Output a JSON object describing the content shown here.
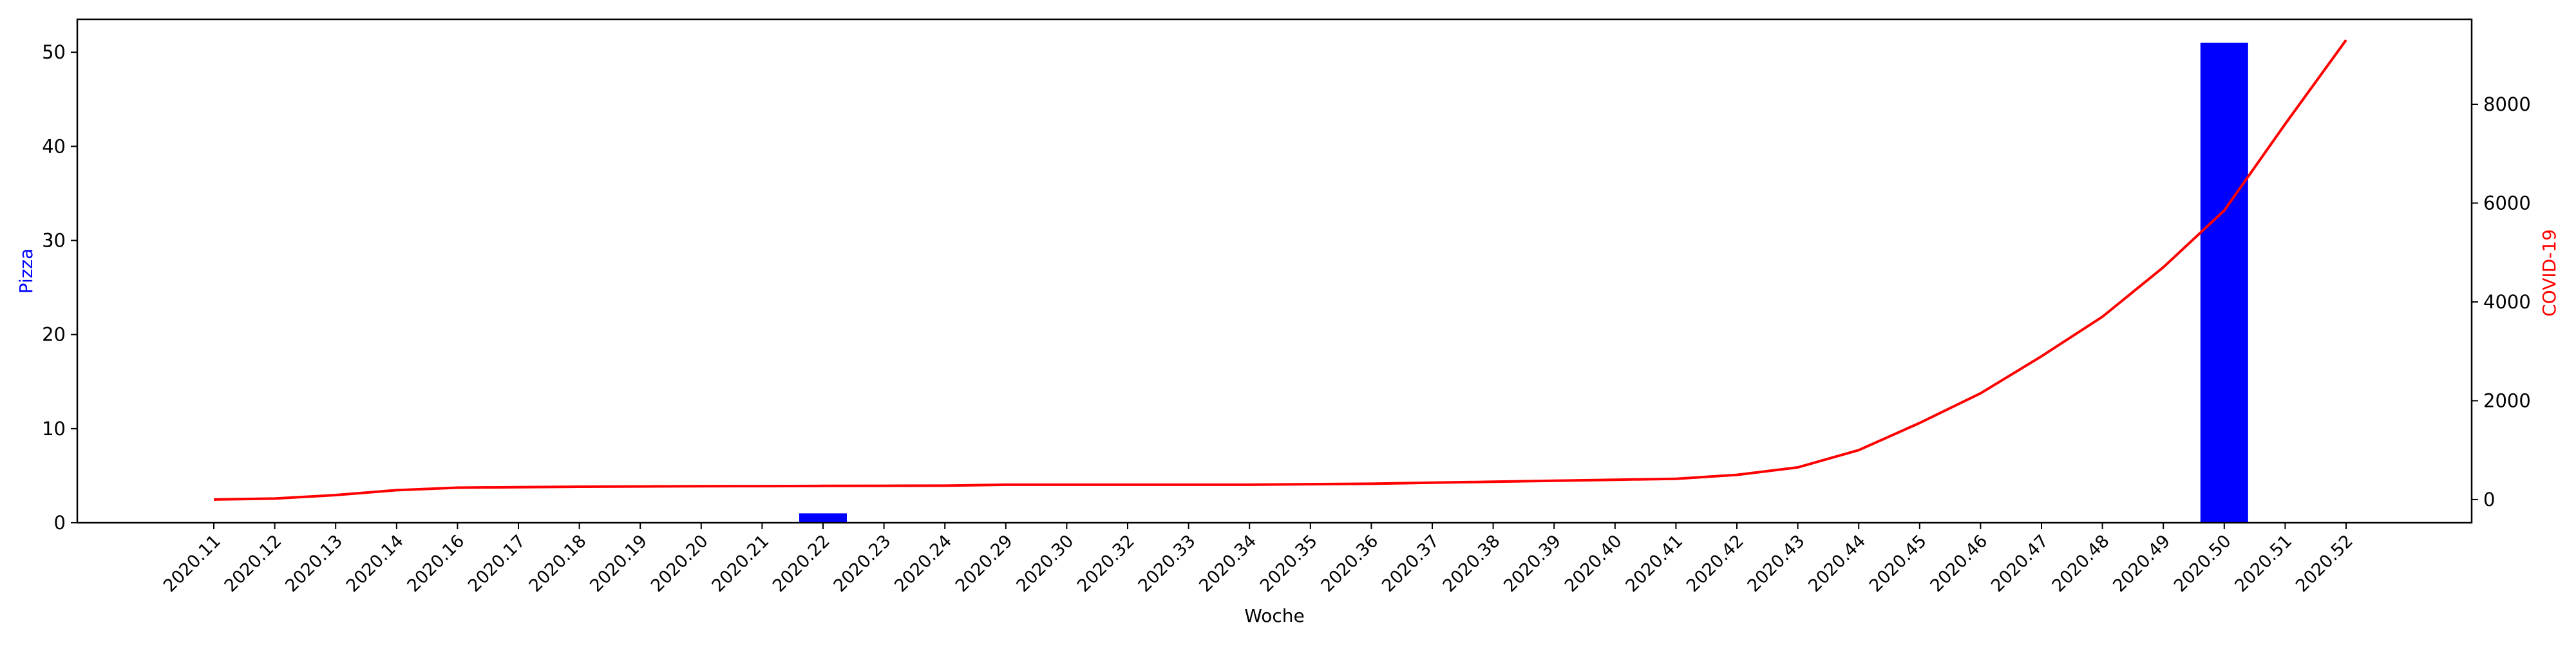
{
  "chart_data": {
    "type": "bar",
    "xlabel": "Woche",
    "categories": [
      "2020.11",
      "2020.12",
      "2020.13",
      "2020.14",
      "2020.16",
      "2020.17",
      "2020.18",
      "2020.19",
      "2020.20",
      "2020.21",
      "2020.22",
      "2020.23",
      "2020.24",
      "2020.29",
      "2020.30",
      "2020.32",
      "2020.33",
      "2020.34",
      "2020.35",
      "2020.36",
      "2020.37",
      "2020.38",
      "2020.39",
      "2020.40",
      "2020.41",
      "2020.42",
      "2020.43",
      "2020.44",
      "2020.45",
      "2020.46",
      "2020.47",
      "2020.48",
      "2020.49",
      "2020.50",
      "2020.51",
      "2020.52"
    ],
    "left_axis": {
      "label": "Pizza",
      "color": "#0000ff",
      "ylim": [
        0,
        53.5
      ],
      "ticks": [
        0,
        10,
        20,
        30,
        40,
        50
      ]
    },
    "right_axis": {
      "label": "COVID-19",
      "color": "#ff0000",
      "ylim": [
        -470,
        9720
      ],
      "ticks": [
        0,
        2000,
        4000,
        6000,
        8000
      ]
    },
    "series": [
      {
        "name": "Pizza",
        "type": "bar",
        "axis": "left",
        "color": "#0000ff",
        "values": [
          0,
          0,
          0,
          0,
          0,
          0,
          0,
          0,
          0,
          0,
          1,
          0,
          0,
          0,
          0,
          0,
          0,
          0,
          0,
          0,
          0,
          0,
          0,
          0,
          0,
          0,
          0,
          0,
          0,
          0,
          0,
          0,
          0,
          51,
          0,
          0
        ]
      },
      {
        "name": "COVID-19",
        "type": "line",
        "axis": "right",
        "color": "#ff0000",
        "values": [
          0,
          20,
          90,
          190,
          240,
          250,
          260,
          265,
          270,
          272,
          275,
          278,
          280,
          300,
          300,
          300,
          300,
          300,
          310,
          320,
          340,
          360,
          380,
          400,
          420,
          500,
          650,
          1000,
          1550,
          2150,
          2900,
          3700,
          4700,
          5850,
          7600,
          9300
        ]
      }
    ],
    "grid": false,
    "legend": "none"
  }
}
